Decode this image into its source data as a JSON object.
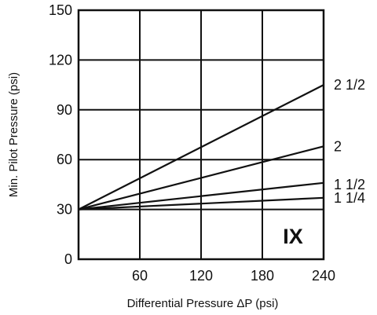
{
  "chart_data": {
    "type": "line",
    "title": "",
    "panel_label": "IX",
    "xlabel": "Differential Pressure   ΔP (psi)",
    "ylabel": "Min. Pilot Pressure (psi)",
    "xlim": [
      0,
      240
    ],
    "ylim": [
      0,
      150
    ],
    "xticks": [
      60,
      120,
      180,
      240
    ],
    "yticks": [
      0,
      30,
      60,
      90,
      120,
      150
    ],
    "grid": true,
    "legend": "inline-right",
    "series": [
      {
        "name": "2 1/2",
        "x": [
          0,
          240
        ],
        "y": [
          30,
          105
        ]
      },
      {
        "name": "2",
        "x": [
          0,
          240
        ],
        "y": [
          30,
          68
        ]
      },
      {
        "name": "1 1/2",
        "x": [
          0,
          240
        ],
        "y": [
          30,
          46
        ]
      },
      {
        "name": "1 1/4",
        "x": [
          0,
          240
        ],
        "y": [
          30,
          37
        ]
      }
    ]
  }
}
